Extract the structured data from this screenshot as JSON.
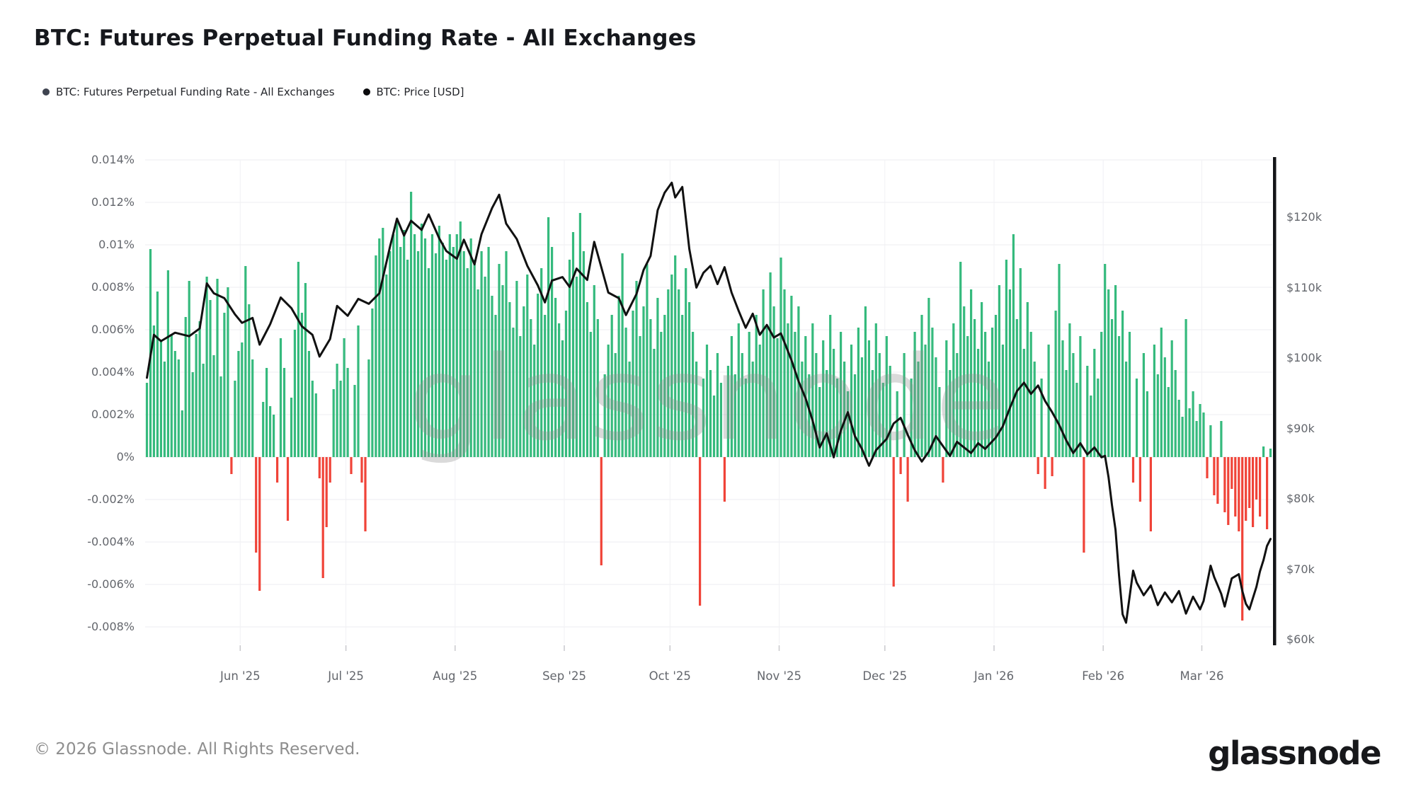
{
  "header": {
    "title": "BTC: Futures Perpetual Funding Rate - All Exchanges"
  },
  "legend": [
    {
      "label": "BTC: Futures Perpetual Funding Rate - All Exchanges",
      "color": "#3f4450"
    },
    {
      "label": "BTC: Price [USD]",
      "color": "#0b0b0d"
    }
  ],
  "watermark": "glassnode",
  "footer": {
    "copyright": "© 2026 Glassnode. All Rights Reserved."
  },
  "logo": "glassnode",
  "chart_data": {
    "type": "bar+line combo",
    "grid": "light horizontal lines at every funding tick, light vertical lines at month starts",
    "bar_series_name": "BTC: Futures Perpetual Funding Rate - All Exchanges",
    "line_series_name": "BTC: Price [USD]",
    "bar_color_positive": "#35ba7d",
    "bar_color_negative": "#f04338",
    "line_color": "#111111",
    "left_axis": {
      "unit": "%",
      "min": -0.008,
      "max": 0.014,
      "tick_labels": [
        "0.014%",
        "0.012%",
        "0.01%",
        "0.008%",
        "0.006%",
        "0.004%",
        "0.002%",
        "0%",
        "-0.002%",
        "-0.004%",
        "-0.006%",
        "-0.008%"
      ],
      "tick_values": [
        0.014,
        0.012,
        0.01,
        0.008,
        0.006,
        0.004,
        0.002,
        0,
        -0.002,
        -0.004,
        -0.006,
        -0.008
      ]
    },
    "right_axis": {
      "unit": "USD",
      "min": 60000,
      "max": 120000,
      "tick_labels": [
        "$120k",
        "$110k",
        "$100k",
        "$90k",
        "$80k",
        "$70k",
        "$60k"
      ],
      "tick_values": [
        120,
        110,
        100,
        90,
        80,
        70,
        60
      ]
    },
    "x_axis": {
      "month_labels": [
        "Jun '25",
        "Jul '25",
        "Aug '25",
        "Sep '25",
        "Oct '25",
        "Nov '25",
        "Dec '25",
        "Jan '26",
        "Feb '26",
        "Mar '26"
      ],
      "month_start_day_index": [
        27,
        57,
        88,
        119,
        149,
        180,
        210,
        241,
        272,
        300
      ],
      "days_total": 320
    },
    "funding_rate_pct_daily": [
      0.0035,
      0.0098,
      0.0062,
      0.0078,
      0.0055,
      0.0045,
      0.0088,
      0.0058,
      0.005,
      0.0046,
      0.0022,
      0.0066,
      0.0083,
      0.004,
      0.0058,
      0.0064,
      0.0044,
      0.0085,
      0.0074,
      0.0048,
      0.0084,
      0.0038,
      0.0068,
      0.008,
      -0.0008,
      0.0036,
      0.005,
      0.0054,
      0.009,
      0.0072,
      0.0046,
      -0.0045,
      -0.0063,
      0.0026,
      0.0042,
      0.0024,
      0.002,
      -0.0012,
      0.0056,
      0.0042,
      -0.003,
      0.0028,
      0.006,
      0.0092,
      0.0068,
      0.0082,
      0.005,
      0.0036,
      0.003,
      -0.001,
      -0.0057,
      -0.0033,
      -0.0012,
      0.0032,
      0.0044,
      0.0036,
      0.0056,
      0.0042,
      -0.0008,
      0.0034,
      0.0062,
      -0.0012,
      -0.0035,
      0.0046,
      0.007,
      0.0095,
      0.0103,
      0.0108,
      0.0086,
      0.0097,
      0.0105,
      0.0112,
      0.0099,
      0.0107,
      0.0093,
      0.0125,
      0.0105,
      0.0097,
      0.011,
      0.0103,
      0.0089,
      0.0105,
      0.0096,
      0.0109,
      0.0101,
      0.0093,
      0.0105,
      0.0099,
      0.0105,
      0.0111,
      0.0097,
      0.0089,
      0.0103,
      0.0093,
      0.0079,
      0.0097,
      0.0085,
      0.0099,
      0.0076,
      0.0067,
      0.0091,
      0.0081,
      0.0097,
      0.0073,
      0.0061,
      0.0083,
      0.0057,
      0.0071,
      0.0086,
      0.0065,
      0.0053,
      0.0077,
      0.0089,
      0.0067,
      0.0113,
      0.0099,
      0.0075,
      0.0063,
      0.0055,
      0.0069,
      0.0093,
      0.0106,
      0.0085,
      0.0115,
      0.0097,
      0.0073,
      0.0059,
      0.0081,
      0.0065,
      -0.0051,
      0.0039,
      0.0053,
      0.0067,
      0.0049,
      0.0076,
      0.0096,
      0.0061,
      0.0045,
      0.0069,
      0.0083,
      0.0057,
      0.0071,
      0.0091,
      0.0065,
      0.0051,
      0.0075,
      0.0059,
      0.0067,
      0.0079,
      0.0086,
      0.0095,
      0.0079,
      0.0067,
      0.0089,
      0.0073,
      0.0059,
      0.0045,
      -0.007,
      0.0037,
      0.0053,
      0.0041,
      0.0029,
      0.0049,
      0.0035,
      -0.0021,
      0.0043,
      0.0057,
      0.0039,
      0.0063,
      0.0049,
      0.0037,
      0.0059,
      0.0045,
      0.0067,
      0.0053,
      0.0079,
      0.0061,
      0.0087,
      0.0071,
      0.0056,
      0.0094,
      0.0079,
      0.0063,
      0.0076,
      0.0059,
      0.0071,
      0.0045,
      0.0057,
      0.0039,
      0.0063,
      0.0049,
      0.0033,
      0.0055,
      0.0041,
      0.0067,
      0.0051,
      0.0037,
      0.0059,
      0.0045,
      0.0031,
      0.0053,
      0.0039,
      0.0061,
      0.0047,
      0.0071,
      0.0055,
      0.0041,
      0.0063,
      0.0049,
      0.0035,
      0.0057,
      0.0043,
      -0.0061,
      0.0031,
      -0.0008,
      0.0049,
      -0.0021,
      0.0037,
      0.0059,
      0.0045,
      0.0067,
      0.0053,
      0.0075,
      0.0061,
      0.0047,
      0.0033,
      -0.0012,
      0.0055,
      0.0041,
      0.0063,
      0.0049,
      0.0092,
      0.0071,
      0.0057,
      0.0079,
      0.0065,
      0.0051,
      0.0073,
      0.0059,
      0.0045,
      0.0061,
      0.0067,
      0.0081,
      0.0053,
      0.0093,
      0.0079,
      0.0105,
      0.0065,
      0.0089,
      0.0051,
      0.0073,
      0.0059,
      0.0045,
      -0.0008,
      0.0037,
      -0.0015,
      0.0053,
      -0.0009,
      0.0069,
      0.0091,
      0.0055,
      0.0041,
      0.0063,
      0.0049,
      0.0035,
      0.0057,
      -0.0045,
      0.0043,
      0.0029,
      0.0051,
      0.0037,
      0.0059,
      0.0091,
      0.0079,
      0.0065,
      0.0081,
      0.0057,
      0.0069,
      0.0045,
      0.0059,
      -0.0012,
      0.0037,
      -0.0021,
      0.0049,
      0.0031,
      -0.0035,
      0.0053,
      0.0039,
      0.0061,
      0.0047,
      0.0033,
      0.0055,
      0.0041,
      0.0027,
      0.0019,
      0.0065,
      0.0023,
      0.0031,
      0.0017,
      0.0025,
      0.0021,
      -0.001,
      0.0015,
      -0.0018,
      -0.0022,
      0.0017,
      -0.0026,
      -0.0032,
      -0.0015,
      -0.0028,
      -0.0035,
      -0.0077,
      -0.003,
      -0.0024,
      -0.0033,
      -0.002,
      -0.0028,
      0.0005,
      -0.0034,
      0.0004
    ],
    "price_usd_k_points": [
      [
        0,
        97.2
      ],
      [
        2,
        103.3
      ],
      [
        4,
        102.4
      ],
      [
        8,
        103.6
      ],
      [
        12,
        103.1
      ],
      [
        15,
        104.2
      ],
      [
        17,
        110.6
      ],
      [
        19,
        109.2
      ],
      [
        22,
        108.5
      ],
      [
        25,
        106.2
      ],
      [
        27,
        105.0
      ],
      [
        30,
        105.7
      ],
      [
        32,
        101.9
      ],
      [
        35,
        104.8
      ],
      [
        38,
        108.6
      ],
      [
        41,
        107.1
      ],
      [
        44,
        104.5
      ],
      [
        47,
        103.3
      ],
      [
        49,
        100.2
      ],
      [
        52,
        102.7
      ],
      [
        54,
        107.4
      ],
      [
        57,
        106.0
      ],
      [
        60,
        108.4
      ],
      [
        63,
        107.7
      ],
      [
        66,
        109.2
      ],
      [
        69,
        115.8
      ],
      [
        71,
        119.8
      ],
      [
        73,
        117.4
      ],
      [
        75,
        119.5
      ],
      [
        78,
        118.2
      ],
      [
        80,
        120.4
      ],
      [
        83,
        117.0
      ],
      [
        85,
        115.2
      ],
      [
        88,
        114.1
      ],
      [
        90,
        116.8
      ],
      [
        93,
        113.3
      ],
      [
        95,
        117.6
      ],
      [
        98,
        121.3
      ],
      [
        100,
        123.2
      ],
      [
        102,
        119.1
      ],
      [
        105,
        116.9
      ],
      [
        108,
        113.1
      ],
      [
        111,
        110.3
      ],
      [
        113,
        107.9
      ],
      [
        115,
        111.0
      ],
      [
        118,
        111.5
      ],
      [
        120,
        110.1
      ],
      [
        122,
        112.7
      ],
      [
        125,
        111.1
      ],
      [
        127,
        116.5
      ],
      [
        129,
        112.9
      ],
      [
        131,
        109.3
      ],
      [
        134,
        108.5
      ],
      [
        136,
        106.1
      ],
      [
        139,
        109.1
      ],
      [
        141,
        112.5
      ],
      [
        143,
        114.5
      ],
      [
        145,
        121.0
      ],
      [
        147,
        123.5
      ],
      [
        149,
        124.9
      ],
      [
        150,
        122.8
      ],
      [
        152,
        124.3
      ],
      [
        154,
        115.5
      ],
      [
        156,
        110.0
      ],
      [
        158,
        112.1
      ],
      [
        160,
        113.1
      ],
      [
        162,
        110.5
      ],
      [
        164,
        112.9
      ],
      [
        166,
        109.3
      ],
      [
        168,
        106.7
      ],
      [
        170,
        104.3
      ],
      [
        172,
        106.3
      ],
      [
        174,
        103.3
      ],
      [
        176,
        104.7
      ],
      [
        178,
        102.9
      ],
      [
        180,
        103.5
      ],
      [
        183,
        99.7
      ],
      [
        185,
        96.7
      ],
      [
        187,
        94.3
      ],
      [
        189,
        91.1
      ],
      [
        191,
        87.3
      ],
      [
        193,
        89.3
      ],
      [
        195,
        85.9
      ],
      [
        197,
        89.7
      ],
      [
        199,
        92.3
      ],
      [
        201,
        88.9
      ],
      [
        203,
        87.1
      ],
      [
        205,
        84.7
      ],
      [
        207,
        86.9
      ],
      [
        210,
        88.5
      ],
      [
        212,
        90.7
      ],
      [
        214,
        91.5
      ],
      [
        216,
        89.1
      ],
      [
        218,
        86.9
      ],
      [
        220,
        85.3
      ],
      [
        222,
        86.7
      ],
      [
        224,
        88.9
      ],
      [
        226,
        87.5
      ],
      [
        228,
        86.1
      ],
      [
        230,
        88.1
      ],
      [
        232,
        87.3
      ],
      [
        234,
        86.5
      ],
      [
        236,
        87.9
      ],
      [
        238,
        87.1
      ],
      [
        241,
        88.7
      ],
      [
        243,
        90.3
      ],
      [
        245,
        92.9
      ],
      [
        247,
        95.3
      ],
      [
        249,
        96.5
      ],
      [
        251,
        94.9
      ],
      [
        253,
        96.1
      ],
      [
        255,
        93.9
      ],
      [
        257,
        92.3
      ],
      [
        259,
        90.5
      ],
      [
        261,
        88.3
      ],
      [
        263,
        86.5
      ],
      [
        265,
        87.9
      ],
      [
        267,
        86.3
      ],
      [
        269,
        87.3
      ],
      [
        271,
        85.9
      ],
      [
        272,
        86.1
      ],
      [
        273,
        83.1
      ],
      [
        274,
        79.1
      ],
      [
        275,
        75.6
      ],
      [
        276,
        69.1
      ],
      [
        277,
        63.6
      ],
      [
        278,
        62.4
      ],
      [
        280,
        69.8
      ],
      [
        281,
        68.1
      ],
      [
        283,
        66.3
      ],
      [
        285,
        67.7
      ],
      [
        287,
        64.9
      ],
      [
        289,
        66.7
      ],
      [
        291,
        65.3
      ],
      [
        293,
        66.9
      ],
      [
        295,
        63.7
      ],
      [
        297,
        66.1
      ],
      [
        299,
        64.3
      ],
      [
        300,
        65.5
      ],
      [
        302,
        70.5
      ],
      [
        303,
        68.9
      ],
      [
        305,
        66.5
      ],
      [
        306,
        64.7
      ],
      [
        308,
        68.7
      ],
      [
        310,
        69.3
      ],
      [
        311,
        66.9
      ],
      [
        312,
        65.1
      ],
      [
        313,
        64.3
      ],
      [
        315,
        67.5
      ],
      [
        316,
        69.7
      ],
      [
        317,
        71.3
      ],
      [
        318,
        73.3
      ],
      [
        319,
        74.3
      ]
    ]
  }
}
